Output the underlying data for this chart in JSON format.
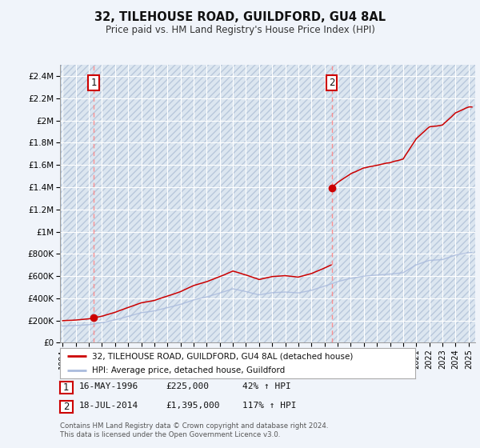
{
  "title": "32, TILEHOUSE ROAD, GUILDFORD, GU4 8AL",
  "subtitle": "Price paid vs. HM Land Registry's House Price Index (HPI)",
  "legend_line1": "32, TILEHOUSE ROAD, GUILDFORD, GU4 8AL (detached house)",
  "legend_line2": "HPI: Average price, detached house, Guildford",
  "transaction1_date": "16-MAY-1996",
  "transaction1_price": "£225,000",
  "transaction1_hpi": "42% ↑ HPI",
  "transaction1_year": 1996.37,
  "transaction1_value": 225000,
  "transaction2_date": "18-JUL-2014",
  "transaction2_price": "£1,395,000",
  "transaction2_hpi": "117% ↑ HPI",
  "transaction2_year": 2014.54,
  "transaction2_value": 1395000,
  "footer": "Contains HM Land Registry data © Crown copyright and database right 2024.\nThis data is licensed under the Open Government Licence v3.0.",
  "background_color": "#f0f4fa",
  "plot_bg_color": "#dce6f0",
  "grid_color": "#ffffff",
  "red_line_color": "#cc0000",
  "blue_line_color": "#aabbdd",
  "dashed_color": "#ff8888",
  "marker_color": "#cc0000",
  "label_box_color": "#cc0000",
  "ylim": [
    0,
    2500000
  ],
  "yticks": [
    0,
    200000,
    400000,
    600000,
    800000,
    1000000,
    1200000,
    1400000,
    1600000,
    1800000,
    2000000,
    2200000,
    2400000
  ],
  "xlim_start": 1993.8,
  "xlim_end": 2025.5,
  "xticks": [
    1994,
    1995,
    1996,
    1997,
    1998,
    1999,
    2000,
    2001,
    2002,
    2003,
    2004,
    2005,
    2006,
    2007,
    2008,
    2009,
    2010,
    2011,
    2012,
    2013,
    2014,
    2015,
    2016,
    2017,
    2018,
    2019,
    2020,
    2021,
    2022,
    2023,
    2024,
    2025
  ]
}
